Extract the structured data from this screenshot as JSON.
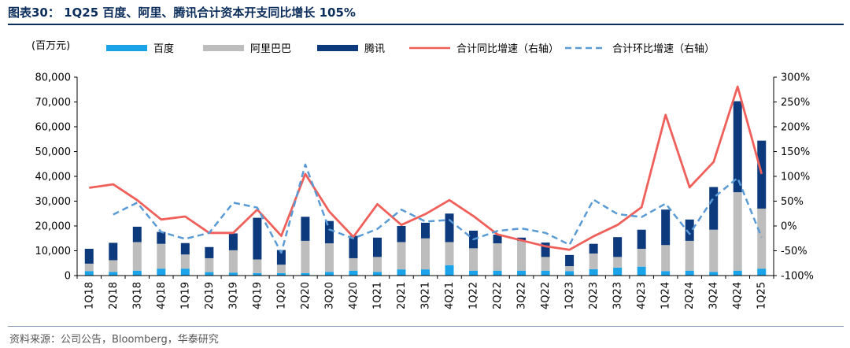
{
  "title": "图表30： 1Q25 百度、阿里、腾讯合计资本开支同比增长 105%",
  "source": "资料来源：公司公告，Bloomberg，华泰研究",
  "chart_data": {
    "type": "bar",
    "stacked": true,
    "unit_label": "(百万元)",
    "categories": [
      "1Q18",
      "2Q18",
      "3Q18",
      "4Q18",
      "1Q19",
      "2Q19",
      "3Q19",
      "4Q19",
      "1Q20",
      "2Q20",
      "3Q20",
      "4Q20",
      "1Q21",
      "2Q21",
      "3Q21",
      "4Q21",
      "1Q22",
      "2Q22",
      "3Q22",
      "4Q22",
      "1Q23",
      "2Q23",
      "3Q23",
      "4Q23",
      "1Q24",
      "2Q24",
      "3Q24",
      "4Q24",
      "1Q25"
    ],
    "series": [
      {
        "name": "百度",
        "type": "bar",
        "axis": "left",
        "color": "#1aa3e8",
        "values": [
          1800,
          1500,
          2000,
          2800,
          2800,
          1400,
          1200,
          1000,
          1000,
          1000,
          1500,
          2000,
          1500,
          2500,
          2500,
          4200,
          2000,
          2000,
          2000,
          2000,
          1800,
          2600,
          3200,
          3600,
          1800,
          2000,
          1500,
          2000,
          2800
        ]
      },
      {
        "name": "阿里巴巴",
        "type": "bar",
        "axis": "left",
        "color": "#bdbdbd",
        "values": [
          3000,
          4700,
          11500,
          10000,
          5700,
          5600,
          9000,
          5500,
          3400,
          13000,
          11500,
          5000,
          6000,
          11000,
          12500,
          9300,
          9000,
          11000,
          12000,
          5500,
          2000,
          6300,
          4300,
          7200,
          10500,
          12000,
          17000,
          31600,
          24200
        ]
      },
      {
        "name": "腾讯",
        "type": "bar",
        "axis": "left",
        "color": "#0d3a7c",
        "values": [
          6000,
          7000,
          6200,
          4800,
          4600,
          4500,
          6800,
          16800,
          5900,
          9700,
          9000,
          9000,
          7800,
          6500,
          6300,
          11500,
          7100,
          3500,
          1300,
          5800,
          4500,
          3900,
          8000,
          7700,
          14300,
          8600,
          17200,
          36700,
          27400
        ]
      },
      {
        "name": "合计同比增速（右轴）",
        "type": "line",
        "axis": "right",
        "color": "#f0605b",
        "dash": "solid",
        "values": [
          77,
          84,
          52,
          13,
          19,
          -14,
          -14,
          33,
          -20,
          105,
          29,
          -22,
          44,
          2,
          24,
          52,
          20,
          -17,
          -29,
          -41,
          -48,
          -21,
          2,
          38,
          224,
          78,
          129,
          281,
          105
        ]
      },
      {
        "name": "合计环比增速（右轴）",
        "type": "line",
        "axis": "right",
        "color": "#5a9bd5",
        "dash": "dashed",
        "values": [
          null,
          23,
          47,
          -12,
          -26,
          -14,
          47,
          37,
          -54,
          124,
          -7,
          -25,
          -6,
          33,
          9,
          12,
          -27,
          -10,
          -5,
          -14,
          -38,
          53,
          24,
          18,
          45,
          -16,
          57,
          97,
          -23
        ]
      }
    ],
    "y_left": {
      "min": 0,
      "max": 80000,
      "step": 10000,
      "tick_labels": [
        "0",
        "10,000",
        "20,000",
        "30,000",
        "40,000",
        "50,000",
        "60,000",
        "70,000",
        "80,000"
      ]
    },
    "y_right": {
      "min": -100,
      "max": 300,
      "step": 50,
      "tick_labels": [
        "-100%",
        "-50%",
        "0%",
        "50%",
        "100%",
        "150%",
        "200%",
        "250%",
        "300%"
      ]
    },
    "legend_position": "top",
    "grid": false
  }
}
